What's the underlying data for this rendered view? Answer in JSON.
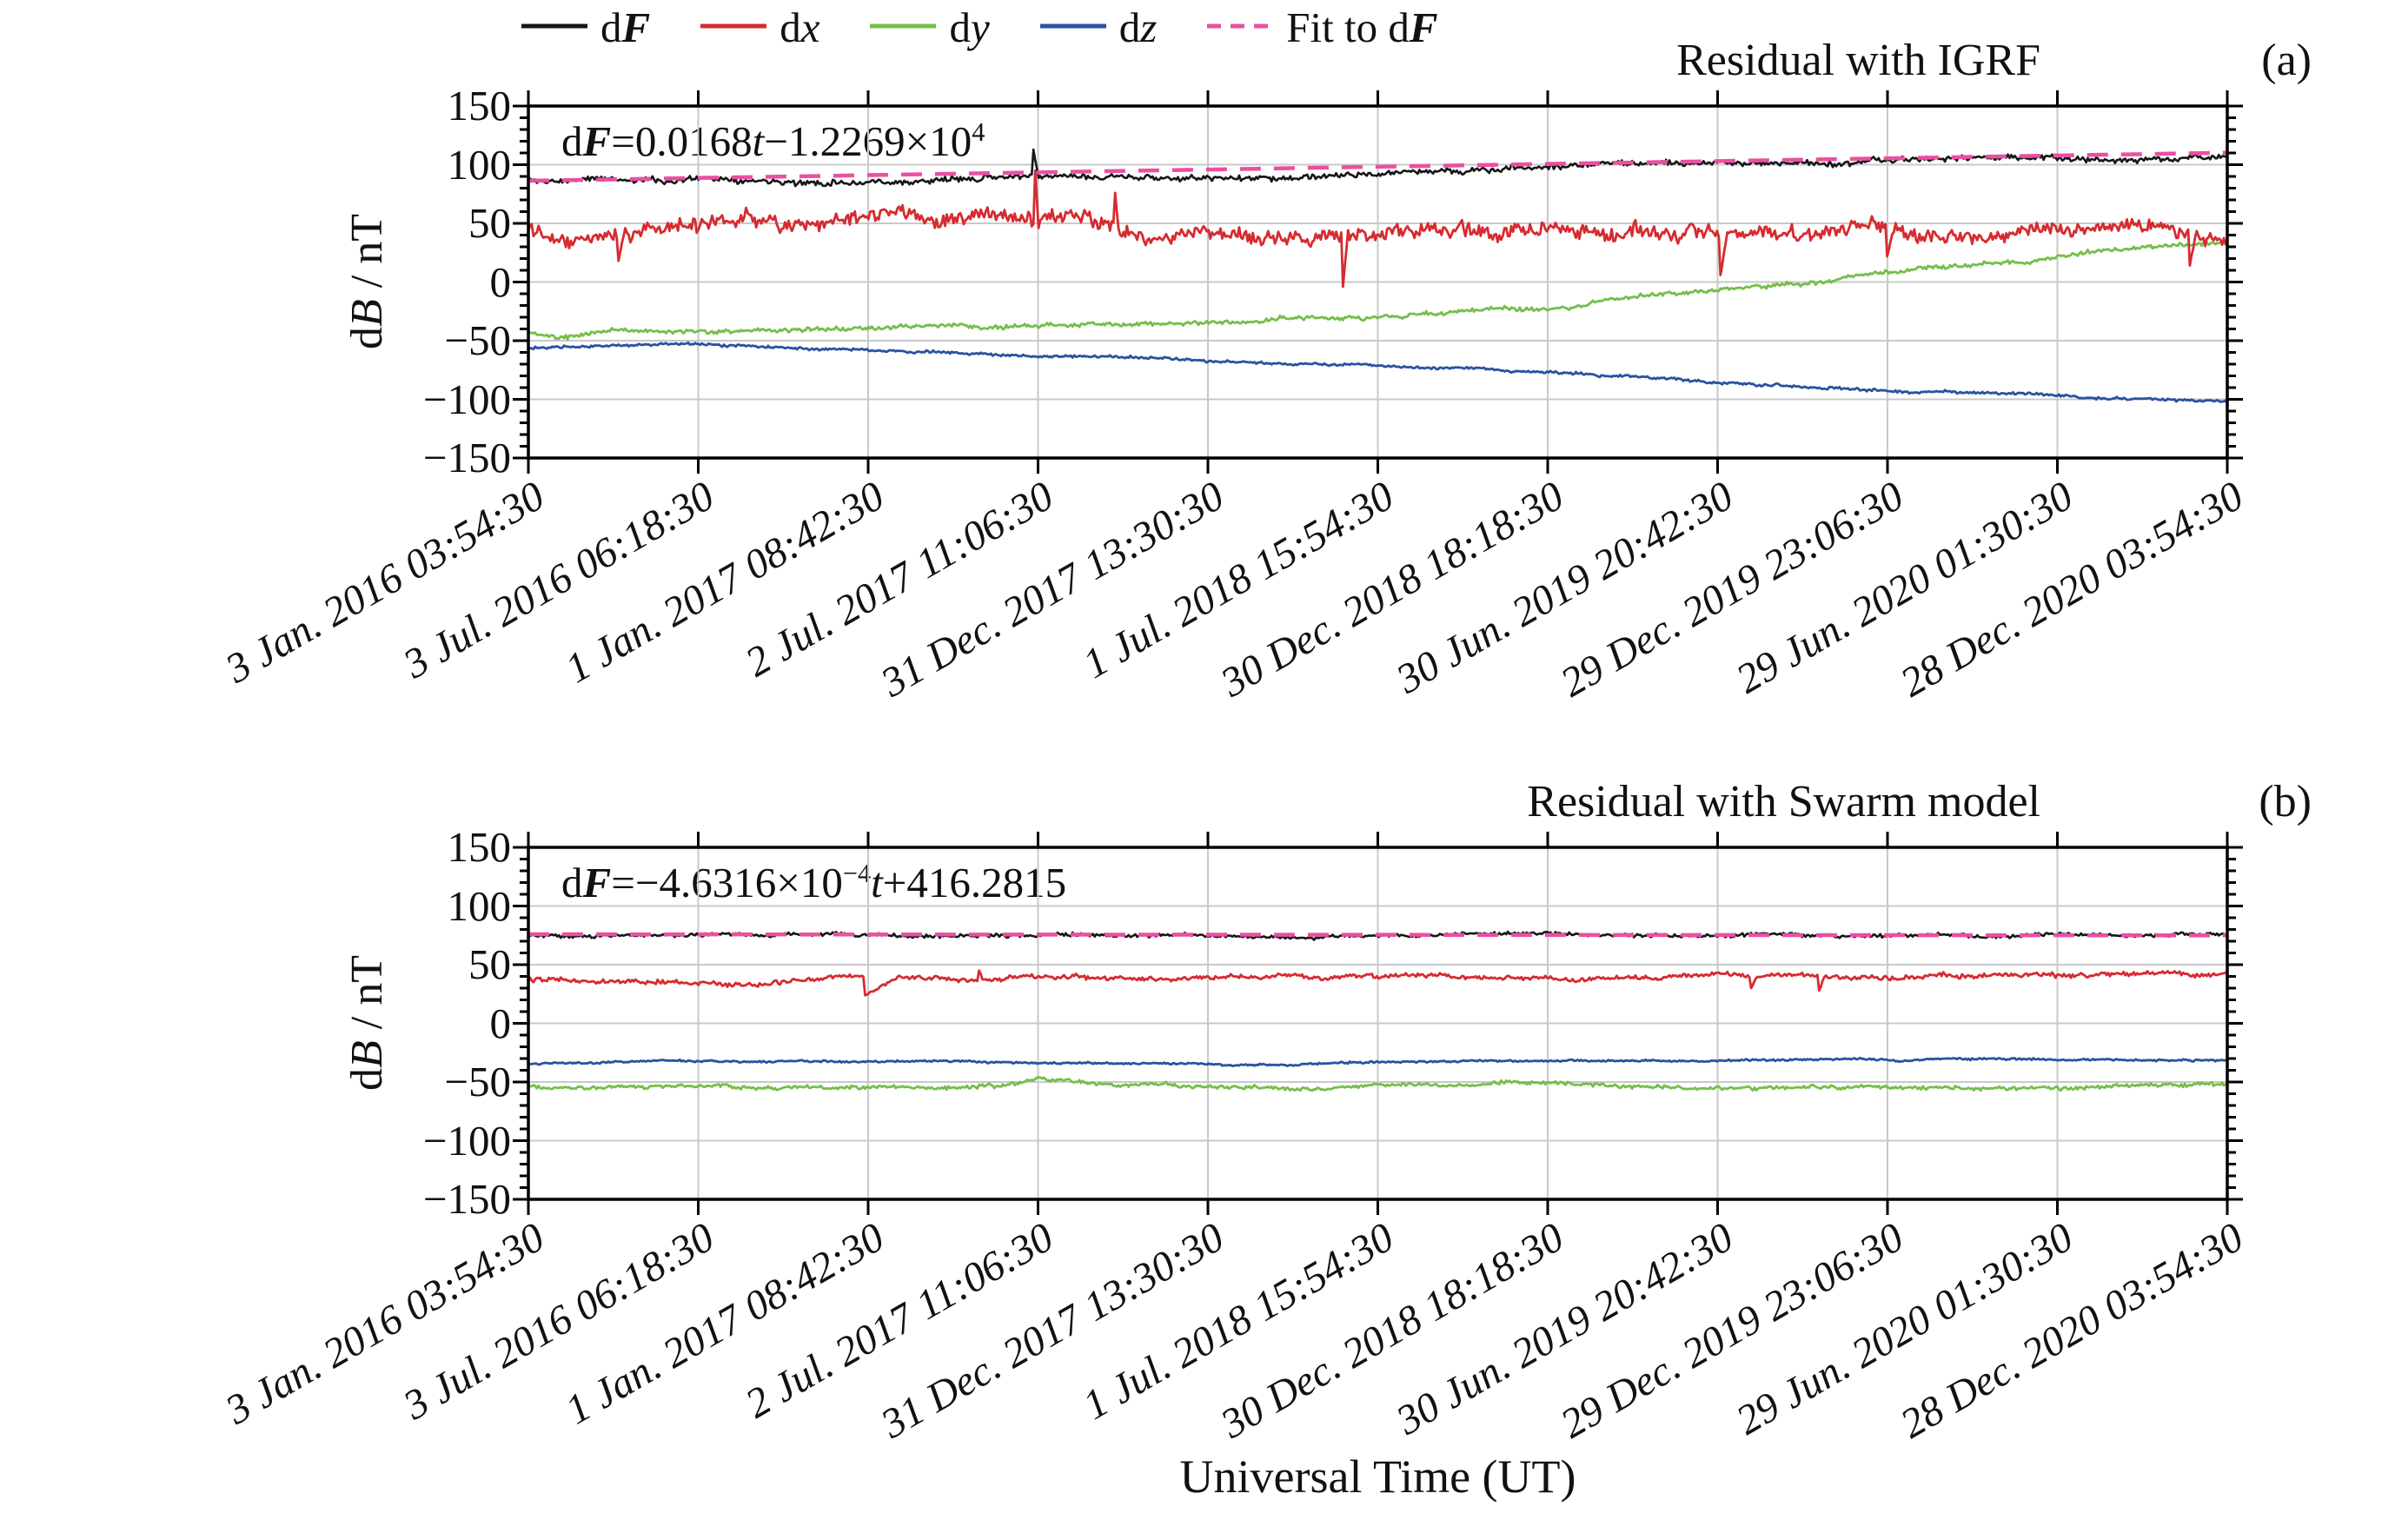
{
  "xlabel": "Universal Time (UT)",
  "ylabel": "dB / nT",
  "ylabel_parts": [
    {
      "t": "d"
    },
    {
      "t": "B",
      "s": "i"
    },
    {
      "t": " / nT"
    }
  ],
  "legend": {
    "items": [
      {
        "name": "dF",
        "parts": [
          {
            "t": "d"
          },
          {
            "t": "F",
            "s": "bi"
          }
        ],
        "color": "#161616",
        "dashed": false
      },
      {
        "name": "dx",
        "parts": [
          {
            "t": "d"
          },
          {
            "t": "x",
            "s": "i"
          }
        ],
        "color": "#d62b30",
        "dashed": false
      },
      {
        "name": "dy",
        "parts": [
          {
            "t": "d"
          },
          {
            "t": "y",
            "s": "i"
          }
        ],
        "color": "#74bf4b",
        "dashed": false
      },
      {
        "name": "dz",
        "parts": [
          {
            "t": "d"
          },
          {
            "t": "z",
            "s": "i"
          }
        ],
        "color": "#2a52a2",
        "dashed": false
      },
      {
        "name": "Fit to dF",
        "parts": [
          {
            "t": "Fit to d"
          },
          {
            "t": "F",
            "s": "bi"
          }
        ],
        "color": "#eb4fa2",
        "dashed": true
      }
    ]
  },
  "chart_data": [
    {
      "type": "line",
      "title": "Residual with IGRF",
      "panel_label": "(a)",
      "equation": "dF=0.0168t−1.2269×10⁴",
      "equation_parts": [
        {
          "t": "d"
        },
        {
          "t": "F",
          "s": "bi"
        },
        {
          "t": "="
        },
        {
          "t": "0.0168"
        },
        {
          "t": "t",
          "s": "i"
        },
        {
          "t": "−1.2269×10"
        },
        {
          "t": "4",
          "s": "sup"
        }
      ],
      "xlabel": "Universal Time (UT)",
      "ylabel": "dB / nT",
      "ylim": [
        -150,
        150
      ],
      "grid": true,
      "legend_position": "top",
      "legend_entries": [
        "dF",
        "dx",
        "dy",
        "dz",
        "Fit to dF"
      ],
      "y_tick_labels": [
        "150",
        "100",
        "50",
        "0",
        "−50",
        "−100",
        "−150"
      ],
      "x_tick_labels": [
        "3 Jan. 2016 03:54:30",
        "3 Jul. 2016 06:18:30",
        "1 Jan. 2017 08:42:30",
        "2 Jul. 2017 11:06:30",
        "31 Dec. 2017 13:30:30",
        "1 Jul. 2018 15:54:30",
        "30 Dec. 2018 18:18:30",
        "30 Jun. 2019 20:42:30",
        "29 Dec. 2019 23:06:30",
        "29 Jun. 2020 01:30:30",
        "28 Dec. 2020 03:54:30"
      ],
      "series": [
        {
          "name": "dz",
          "color": "#2a52a2",
          "width": 2.8,
          "seed": 44,
          "noise_amplitude": 1.5,
          "trend_anchors": [
            [
              0,
              -57
            ],
            [
              0.04,
              -54.5
            ],
            [
              0.08,
              -53
            ],
            [
              0.12,
              -54
            ],
            [
              0.16,
              -55.5
            ],
            [
              0.2,
              -57.5
            ],
            [
              0.25,
              -60
            ],
            [
              0.3,
              -63
            ],
            [
              0.35,
              -66
            ],
            [
              0.4,
              -68
            ],
            [
              0.45,
              -69.5
            ],
            [
              0.5,
              -71
            ],
            [
              0.55,
              -73
            ],
            [
              0.6,
              -77
            ],
            [
              0.65,
              -81
            ],
            [
              0.7,
              -85
            ],
            [
              0.75,
              -88
            ],
            [
              0.78,
              -90
            ],
            [
              0.82,
              -92.5
            ],
            [
              0.86,
              -95
            ],
            [
              0.9,
              -97
            ],
            [
              0.93,
              -99
            ],
            [
              0.96,
              -100.5
            ],
            [
              1,
              -102
            ]
          ]
        },
        {
          "name": "dy",
          "color": "#74bf4b",
          "width": 2.8,
          "seed": 33,
          "noise_amplitude": 2.3,
          "trend_anchors": [
            [
              0,
              -43
            ],
            [
              0.02,
              -48
            ],
            [
              0.05,
              -44
            ],
            [
              0.1,
              -42
            ],
            [
              0.15,
              -41
            ],
            [
              0.2,
              -40
            ],
            [
              0.25,
              -38.5
            ],
            [
              0.3,
              -37
            ],
            [
              0.35,
              -35
            ],
            [
              0.4,
              -33
            ],
            [
              0.45,
              -30.5
            ],
            [
              0.5,
              -28
            ],
            [
              0.55,
              -25
            ],
            [
              0.6,
              -21.5
            ],
            [
              0.62,
              -21
            ],
            [
              0.635,
              -14.5
            ],
            [
              0.66,
              -12
            ],
            [
              0.7,
              -8
            ],
            [
              0.73,
              -4.5
            ],
            [
              0.76,
              -0.5
            ],
            [
              0.8,
              6
            ],
            [
              0.84,
              13
            ],
            [
              0.88,
              19.5
            ],
            [
              0.92,
              25
            ],
            [
              0.96,
              30
            ],
            [
              1,
              34
            ]
          ]
        },
        {
          "name": "dx",
          "color": "#d62b30",
          "width": 2.8,
          "seed": 22,
          "noise_amplitude": 8.5,
          "trend_anchors": [
            [
              0,
              47
            ],
            [
              0.1,
              46
            ],
            [
              0.2,
              45.5
            ],
            [
              0.3,
              46
            ],
            [
              0.38,
              44
            ],
            [
              0.45,
              44.5
            ],
            [
              0.5,
              43.5
            ],
            [
              0.55,
              42
            ],
            [
              0.6,
              41.5
            ],
            [
              0.65,
              42.5
            ],
            [
              0.7,
              43
            ],
            [
              0.75,
              42
            ],
            [
              0.8,
              41
            ],
            [
              0.85,
              40.5
            ],
            [
              0.9,
              39.5
            ],
            [
              0.95,
              38
            ],
            [
              1,
              37
            ]
          ],
          "spikes": [
            [
              0.053,
              18,
              4
            ],
            [
              0.298,
              95,
              2
            ],
            [
              0.345,
              76,
              2
            ],
            [
              0.479,
              -4,
              3
            ],
            [
              0.702,
              6,
              4
            ],
            [
              0.8,
              22,
              3
            ],
            [
              0.978,
              14,
              3
            ]
          ]
        },
        {
          "name": "dF",
          "color": "#161616",
          "width": 2.6,
          "seed": 11,
          "noise_amplitude": 3.2,
          "trend_anchors": [
            [
              0,
              87
            ],
            [
              0.05,
              86
            ],
            [
              0.1,
              85.5
            ],
            [
              0.15,
              86
            ],
            [
              0.2,
              87
            ],
            [
              0.25,
              88
            ],
            [
              0.3,
              89
            ],
            [
              0.35,
              88.5
            ],
            [
              0.4,
              90
            ],
            [
              0.45,
              91
            ],
            [
              0.5,
              92.5
            ],
            [
              0.55,
              94
            ],
            [
              0.6,
              96.5
            ],
            [
              0.63,
              99
            ],
            [
              0.66,
              100.5
            ],
            [
              0.7,
              101.5
            ],
            [
              0.75,
              102.5
            ],
            [
              0.8,
              103.5
            ],
            [
              0.85,
              105
            ],
            [
              0.9,
              106.5
            ],
            [
              0.95,
              108.5
            ],
            [
              1,
              111.5
            ]
          ],
          "spikes": [
            [
              0.297,
              113,
              3
            ]
          ]
        },
        {
          "name": "Fit to dF",
          "color": "#eb4fa2",
          "style": "dashed",
          "values": [
            [
              0,
              86.3
            ],
            [
              1,
              110.2
            ]
          ]
        }
      ]
    },
    {
      "type": "line",
      "title": "Residual with Swarm model",
      "panel_label": "(b)",
      "equation": "dF=−4.6316×10⁻⁴t+416.2815",
      "equation_parts": [
        {
          "t": "d"
        },
        {
          "t": "F",
          "s": "bi"
        },
        {
          "t": "=−4.6316×10"
        },
        {
          "t": "−4",
          "s": "sup"
        },
        {
          "t": "t",
          "s": "i"
        },
        {
          "t": "+416.2815"
        }
      ],
      "xlabel": "Universal Time (UT)",
      "ylabel": "dB / nT",
      "ylim": [
        -150,
        150
      ],
      "grid": true,
      "legend_position": "top",
      "legend_entries": [
        "dF",
        "dx",
        "dy",
        "dz",
        "Fit to dF"
      ],
      "y_tick_labels": [
        "150",
        "100",
        "50",
        "0",
        "−50",
        "−100",
        "−150"
      ],
      "x_tick_labels": [
        "3 Jan. 2016 03:54:30",
        "3 Jul. 2016 06:18:30",
        "1 Jan. 2017 08:42:30",
        "2 Jul. 2017 11:06:30",
        "31 Dec. 2017 13:30:30",
        "1 Jul. 2018 15:54:30",
        "30 Dec. 2018 18:18:30",
        "30 Jun. 2019 20:42:30",
        "29 Dec. 2019 23:06:30",
        "29 Jun. 2020 01:30:30",
        "28 Dec. 2020 03:54:30"
      ],
      "series": [
        {
          "name": "dz",
          "color": "#2a52a2",
          "width": 2.8,
          "seed": 88,
          "noise_amplitude": 1.1,
          "trend_anchors": [
            [
              0,
              -34.5
            ],
            [
              0.08,
              -32.5
            ],
            [
              0.15,
              -32
            ],
            [
              0.25,
              -32.5
            ],
            [
              0.33,
              -33.5
            ],
            [
              0.42,
              -34
            ],
            [
              0.5,
              -33
            ],
            [
              0.57,
              -31.5
            ],
            [
              0.65,
              -31
            ],
            [
              0.75,
              -30.5
            ],
            [
              0.85,
              -30
            ],
            [
              0.95,
              -30
            ],
            [
              1,
              -30.5
            ]
          ]
        },
        {
          "name": "dy",
          "color": "#74bf4b",
          "width": 2.8,
          "seed": 77,
          "noise_amplitude": 2.1,
          "trend_anchors": [
            [
              0,
              -53.5
            ],
            [
              0.08,
              -54.5
            ],
            [
              0.16,
              -55.5
            ],
            [
              0.24,
              -55
            ],
            [
              0.28,
              -53.5
            ],
            [
              0.3,
              -47.5
            ],
            [
              0.33,
              -52
            ],
            [
              0.38,
              -54.5
            ],
            [
              0.45,
              -55.5
            ],
            [
              0.52,
              -55
            ],
            [
              0.58,
              -53.5
            ],
            [
              0.62,
              -52.5
            ],
            [
              0.68,
              -54.5
            ],
            [
              0.76,
              -55
            ],
            [
              0.84,
              -55.5
            ],
            [
              0.9,
              -56
            ],
            [
              0.95,
              -55
            ],
            [
              1,
              -53.5
            ]
          ],
          "spikes": [
            [
              0.3,
              -46,
              4
            ]
          ]
        },
        {
          "name": "dx",
          "color": "#d62b30",
          "width": 2.8,
          "seed": 66,
          "noise_amplitude": 2.6,
          "trend_anchors": [
            [
              0,
              38
            ],
            [
              0.15,
              37.5
            ],
            [
              0.3,
              38.5
            ],
            [
              0.5,
              38
            ],
            [
              0.65,
              39
            ],
            [
              0.8,
              39.5
            ],
            [
              0.9,
              40.5
            ],
            [
              1,
              41
            ]
          ],
          "spikes": [
            [
              0.198,
              24,
              18
            ],
            [
              0.265,
              45,
              2
            ],
            [
              0.72,
              30,
              3
            ],
            [
              0.76,
              28,
              3
            ]
          ]
        },
        {
          "name": "dF",
          "color": "#161616",
          "width": 2.6,
          "seed": 55,
          "noise_amplitude": 2.0,
          "trend_anchors": [
            [
              0,
              75.5
            ],
            [
              0.25,
              75.2
            ],
            [
              0.5,
              75
            ],
            [
              0.75,
              75.2
            ],
            [
              1,
              75.3
            ]
          ]
        },
        {
          "name": "Fit to dF",
          "color": "#eb4fa2",
          "style": "dashed",
          "values": [
            [
              0,
              75.9
            ],
            [
              1,
              75.0
            ]
          ]
        }
      ]
    }
  ]
}
